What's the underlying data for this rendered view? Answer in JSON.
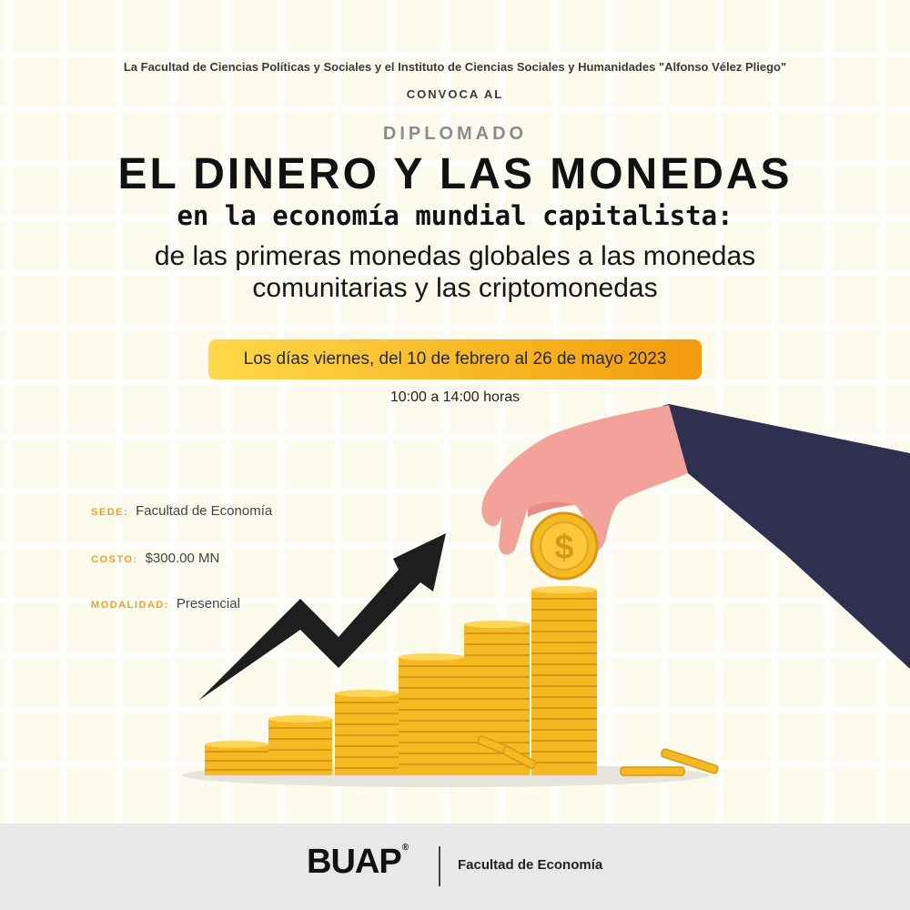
{
  "header": {
    "intro": "La Facultad de Ciencias Políticas y Sociales y el Instituto de Ciencias Sociales y Humanidades \"Alfonso Vélez Pliego\"",
    "convoca": "CONVOCA AL",
    "kicker": "DIPLOMADO",
    "title": "EL DINERO Y LAS MONEDAS",
    "subtitle": "en la economía mundial capitalista:",
    "description_lines": [
      "de las primeras monedas globales a las monedas",
      "comunitarias y las criptomonedas"
    ]
  },
  "schedule": {
    "dates": "Los días viernes, del 10 de febrero al 26 de mayo 2023",
    "time": "10:00 a 14:00 horas"
  },
  "info": {
    "sede": {
      "label": "SEDE:",
      "value": "Facultad de Economía"
    },
    "costo": {
      "label": "COSTO:",
      "value": "$300.00 MN"
    },
    "modalidad": {
      "label": "MODALIDAD:",
      "value": "Presencial"
    }
  },
  "illustration": {
    "icons": [
      "hand-icon",
      "coin-stack-icon",
      "trend-arrow-icon",
      "dollar-coin-icon"
    ],
    "coin_symbol": "$",
    "colors": {
      "coin": "#f5b921",
      "coin_dark": "#d9971a",
      "hand": "#f2a29a",
      "sleeve": "#2f2f4f",
      "arrow": "#1e1e1e"
    }
  },
  "footer": {
    "logo": "BUAP",
    "logo_mark": "®",
    "faculty": "Facultad de Economía"
  },
  "colors": {
    "background": "#fdfbee",
    "grid": "#ffffff",
    "pill_start": "#ffd84a",
    "pill_end": "#f29a12",
    "label_accent": "#f0a020",
    "footer_bg": "#e8e8e8"
  }
}
